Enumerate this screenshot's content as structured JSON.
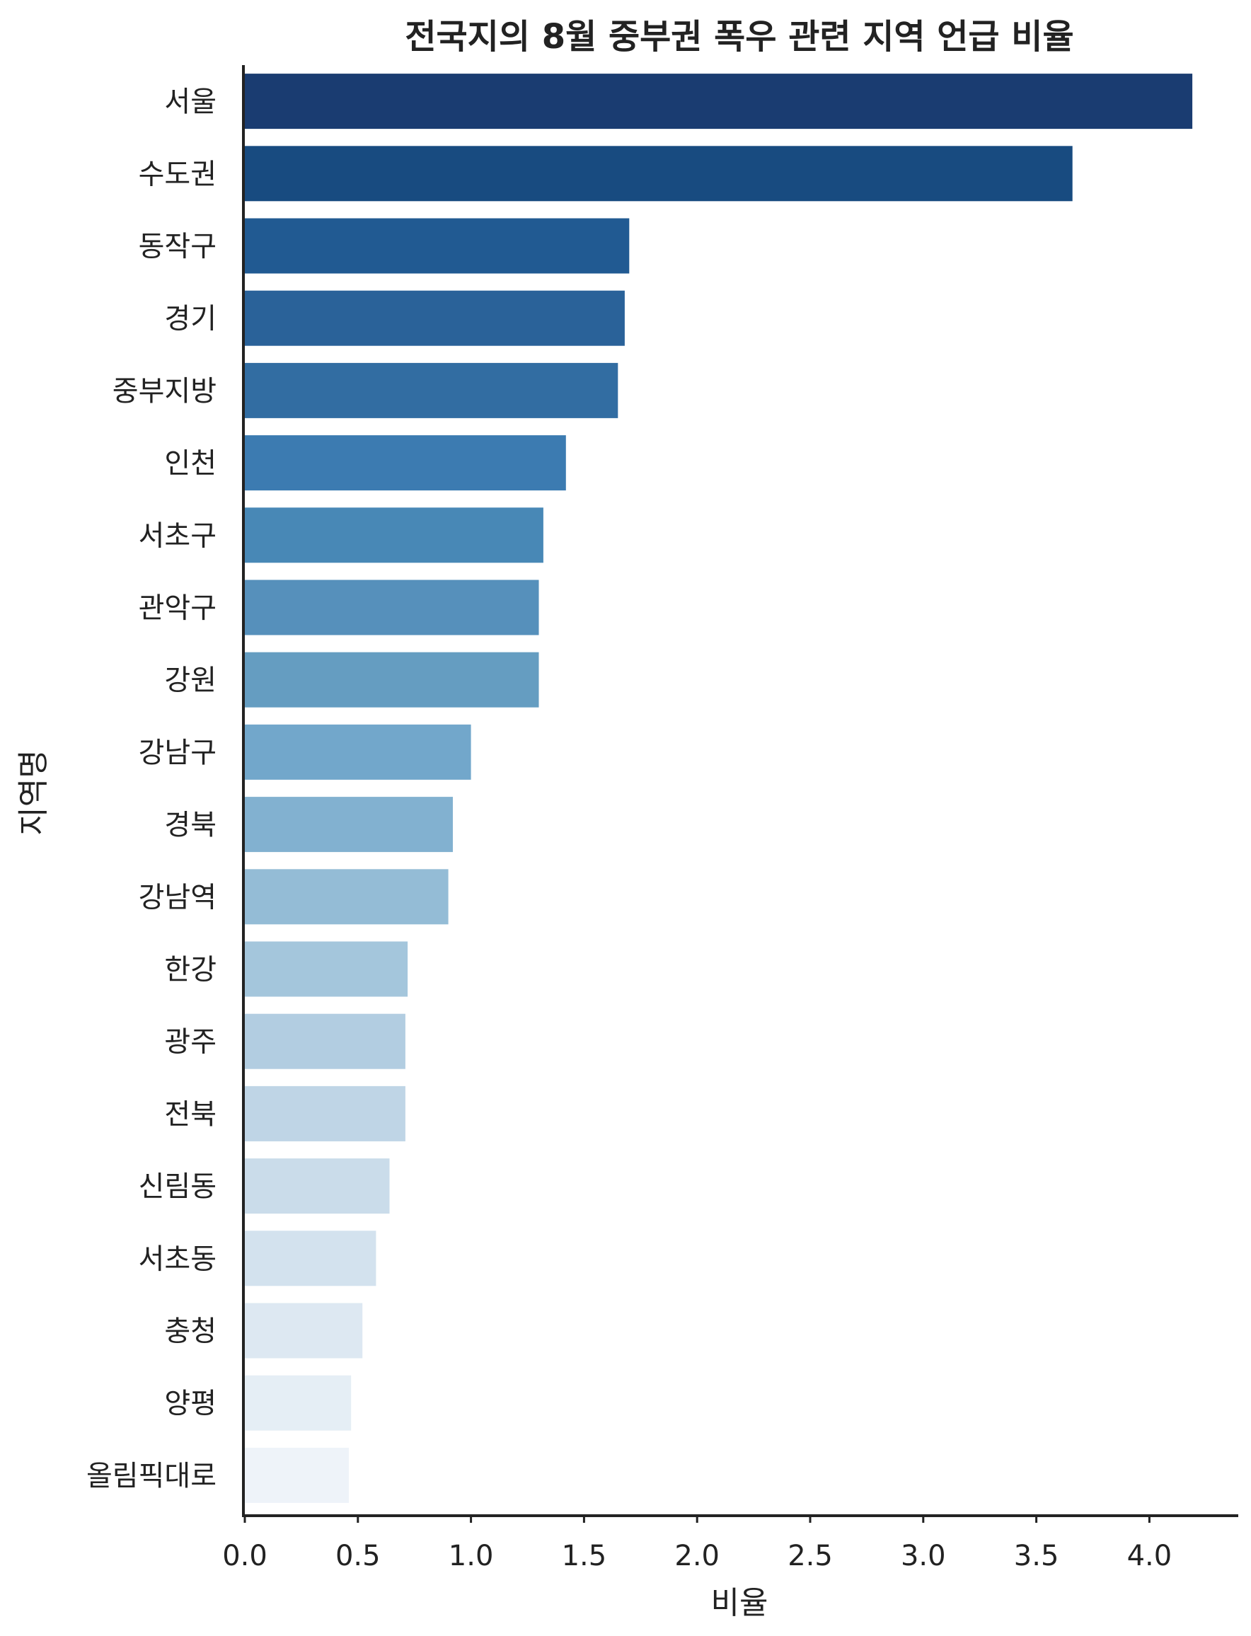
{
  "chart_data": {
    "type": "bar",
    "orientation": "horizontal",
    "title": "전국지의 8월 중부권 폭우 관련 지역 언급 비율",
    "xlabel": "비율",
    "ylabel": "지역명",
    "xlim": [
      0,
      4.4
    ],
    "xticks": [
      "0.0",
      "0.5",
      "1.0",
      "1.5",
      "2.0",
      "2.5",
      "3.0",
      "3.5",
      "4.0"
    ],
    "grid": false,
    "categories": [
      "서울",
      "수도권",
      "동작구",
      "경기",
      "중부지방",
      "인천",
      "서초구",
      "관악구",
      "강원",
      "강남구",
      "경북",
      "강남역",
      "한강",
      "광주",
      "전북",
      "신림동",
      "서초동",
      "충청",
      "양평",
      "올림픽대로"
    ],
    "values": [
      4.19,
      3.66,
      1.7,
      1.68,
      1.65,
      1.42,
      1.32,
      1.3,
      1.3,
      1.0,
      0.92,
      0.9,
      0.72,
      0.71,
      0.71,
      0.64,
      0.58,
      0.52,
      0.47,
      0.46
    ],
    "colors": [
      "#1a3c71",
      "#184b80",
      "#215a92",
      "#2a6299",
      "#326da2",
      "#3c7bb1",
      "#4888b6",
      "#5690bb",
      "#659dc1",
      "#72a7cb",
      "#82b1d0",
      "#94bcd6",
      "#a4c6dc",
      "#b2cde1",
      "#bfd5e6",
      "#cadcea",
      "#d3e2ee",
      "#dde8f2",
      "#e5eef5",
      "#eef3f9"
    ]
  }
}
